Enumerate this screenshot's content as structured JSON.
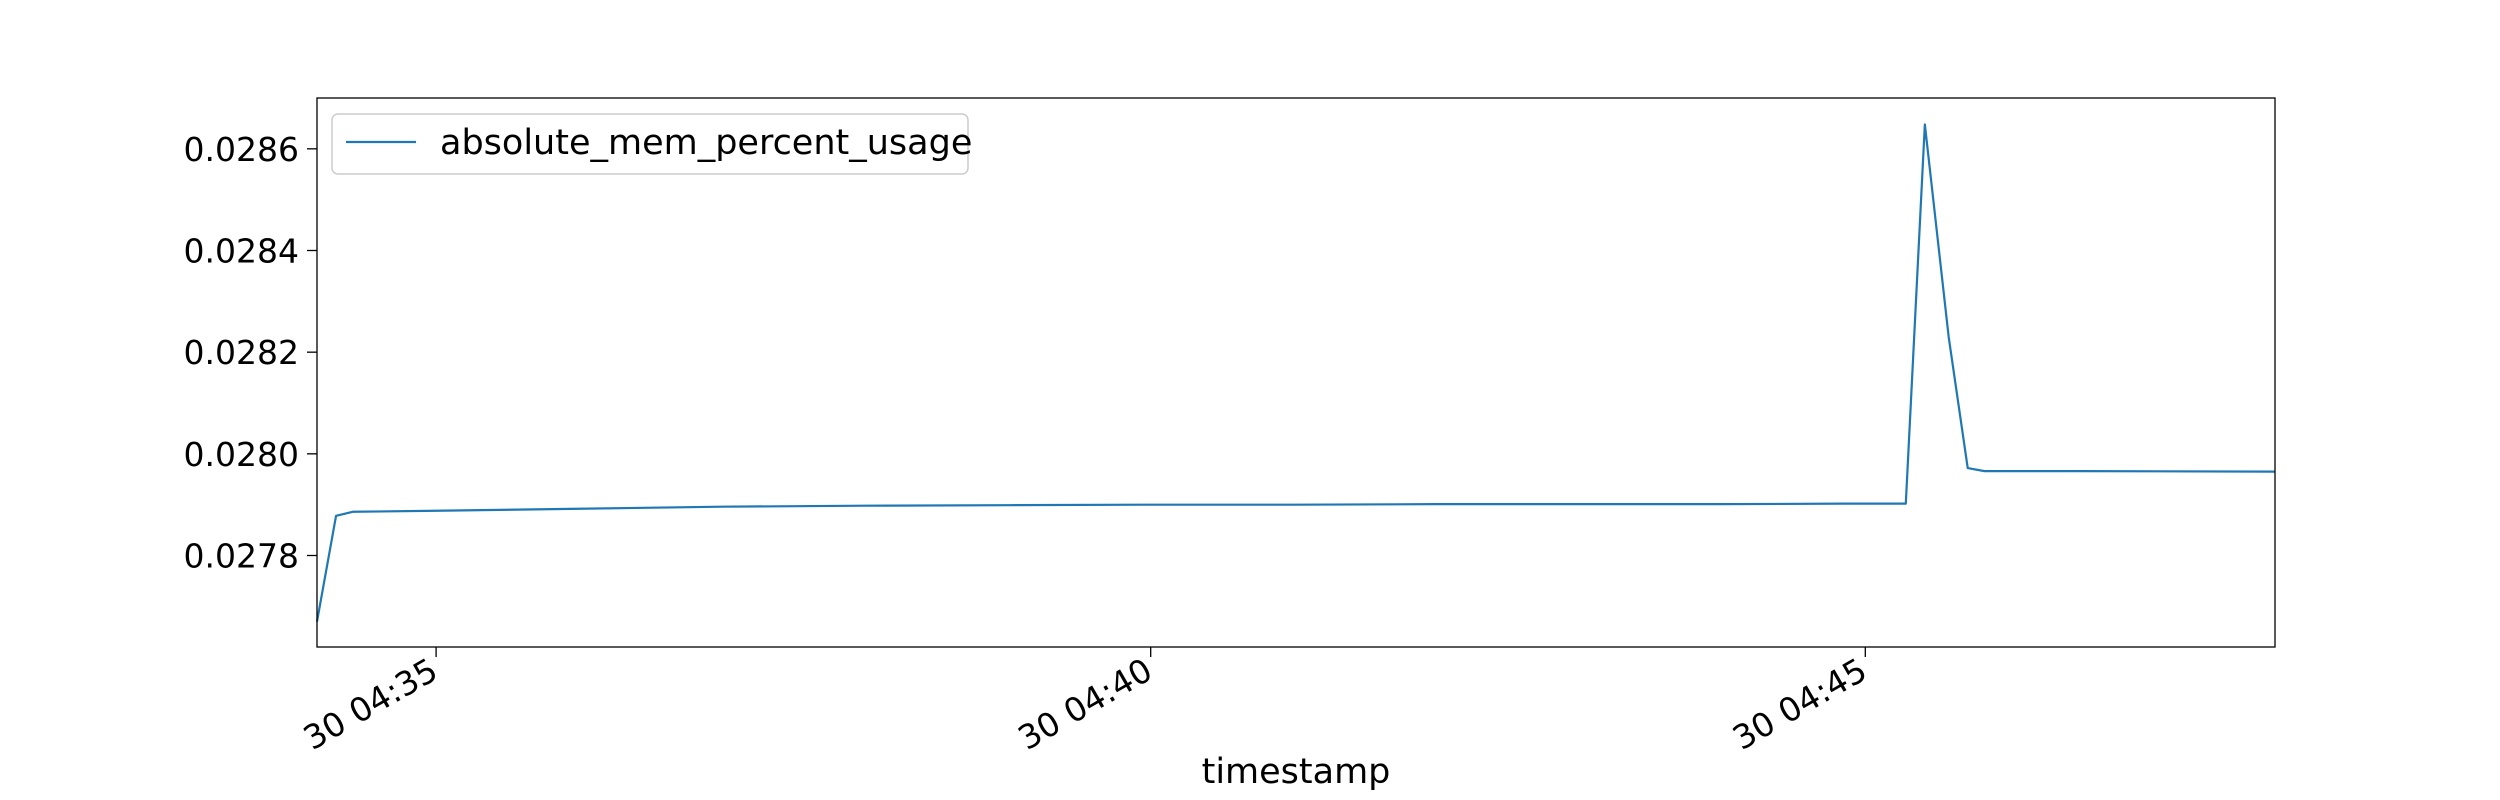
{
  "chart_data": {
    "type": "line",
    "title": "",
    "xlabel": "timestamp",
    "ylabel": "",
    "legend": {
      "placement": "upper-left",
      "entries": [
        "absolute_mem_percent_usage"
      ]
    },
    "grid": false,
    "x_axis": {
      "kind": "time",
      "range": [
        "30 04:34:10",
        "30 04:47:52"
      ],
      "ticks": [
        {
          "at": "30 04:35:00",
          "label": "30 04:35"
        },
        {
          "at": "30 04:40:00",
          "label": "30 04:40"
        },
        {
          "at": "30 04:45:00",
          "label": "30 04:45"
        }
      ]
    },
    "y_axis": {
      "range": [
        0.02762,
        0.0287
      ],
      "ticks": [
        {
          "value": 0.0278,
          "label": "0.0278"
        },
        {
          "value": 0.028,
          "label": "0.0280"
        },
        {
          "value": 0.0282,
          "label": "0.0282"
        },
        {
          "value": 0.0284,
          "label": "0.0284"
        },
        {
          "value": 0.0286,
          "label": "0.0286"
        }
      ]
    },
    "series": [
      {
        "name": "absolute_mem_percent_usage",
        "color": "#1f77b4",
        "points": [
          [
            "30 04:34:10",
            0.02767
          ],
          [
            "30 04:34:18",
            0.027878
          ],
          [
            "30 04:34:25",
            0.027886
          ],
          [
            "30 04:35:00",
            0.027888
          ],
          [
            "30 04:36:00",
            0.027892
          ],
          [
            "30 04:37:00",
            0.027896
          ],
          [
            "30 04:38:00",
            0.027898
          ],
          [
            "30 04:39:00",
            0.027899
          ],
          [
            "30 04:40:00",
            0.0279
          ],
          [
            "30 04:41:00",
            0.0279
          ],
          [
            "30 04:42:00",
            0.027901
          ],
          [
            "30 04:43:00",
            0.027901
          ],
          [
            "30 04:44:00",
            0.027901
          ],
          [
            "30 04:44:50",
            0.027902
          ],
          [
            "30 04:45:17",
            0.027902
          ],
          [
            "30 04:45:25",
            0.028648
          ],
          [
            "30 04:45:35",
            0.02823
          ],
          [
            "30 04:45:43",
            0.027972
          ],
          [
            "30 04:45:50",
            0.027966
          ],
          [
            "30 04:46:30",
            0.027966
          ],
          [
            "30 04:47:52",
            0.027965
          ]
        ]
      }
    ]
  }
}
